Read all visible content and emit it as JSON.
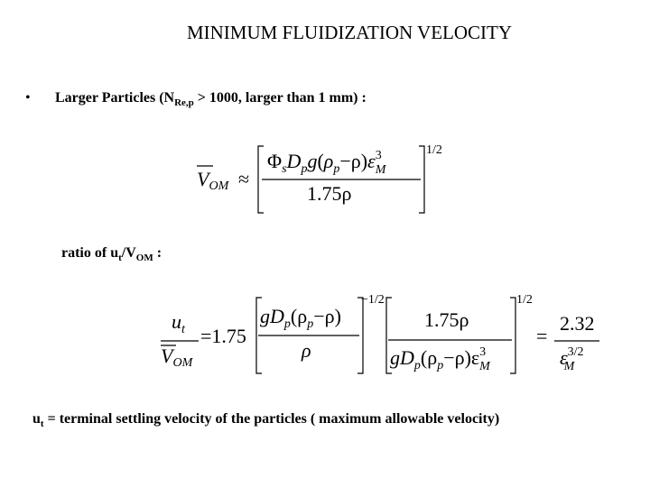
{
  "title": "MINIMUM FLUIDIZATION VELOCITY",
  "bullet": {
    "marker": "•",
    "parts": [
      "Larger Particles (N",
      "Re,p",
      " > 1000, larger than 1 mm) :"
    ]
  },
  "equation_1": {
    "parts": [
      "V",
      "OM",
      "≈",
      "Φ",
      "s",
      "D",
      "p",
      "g",
      "(",
      "ρ",
      "p",
      "−ρ)",
      "ε",
      "3",
      "M",
      "1.75ρ",
      "1/2"
    ]
  },
  "ratio_line": {
    "parts": [
      "ratio of u",
      "t",
      "/V",
      "OM",
      " :"
    ]
  },
  "equation_2": {
    "parts": [
      "u",
      "t",
      "V",
      "OM",
      "=1.75",
      "gD",
      "p",
      "(ρ",
      "p",
      "−ρ)",
      "ρ",
      "−1/2",
      "1.75ρ",
      "gD",
      "p",
      "(ρ",
      "p",
      "−ρ)ε",
      "3",
      "M",
      "1/2",
      "=",
      "2.32",
      "ε",
      "3/2",
      "M"
    ]
  },
  "footer": {
    "parts": [
      "u",
      "t",
      " = terminal settling velocity of the particles ( maximum allowable velocity)"
    ]
  }
}
